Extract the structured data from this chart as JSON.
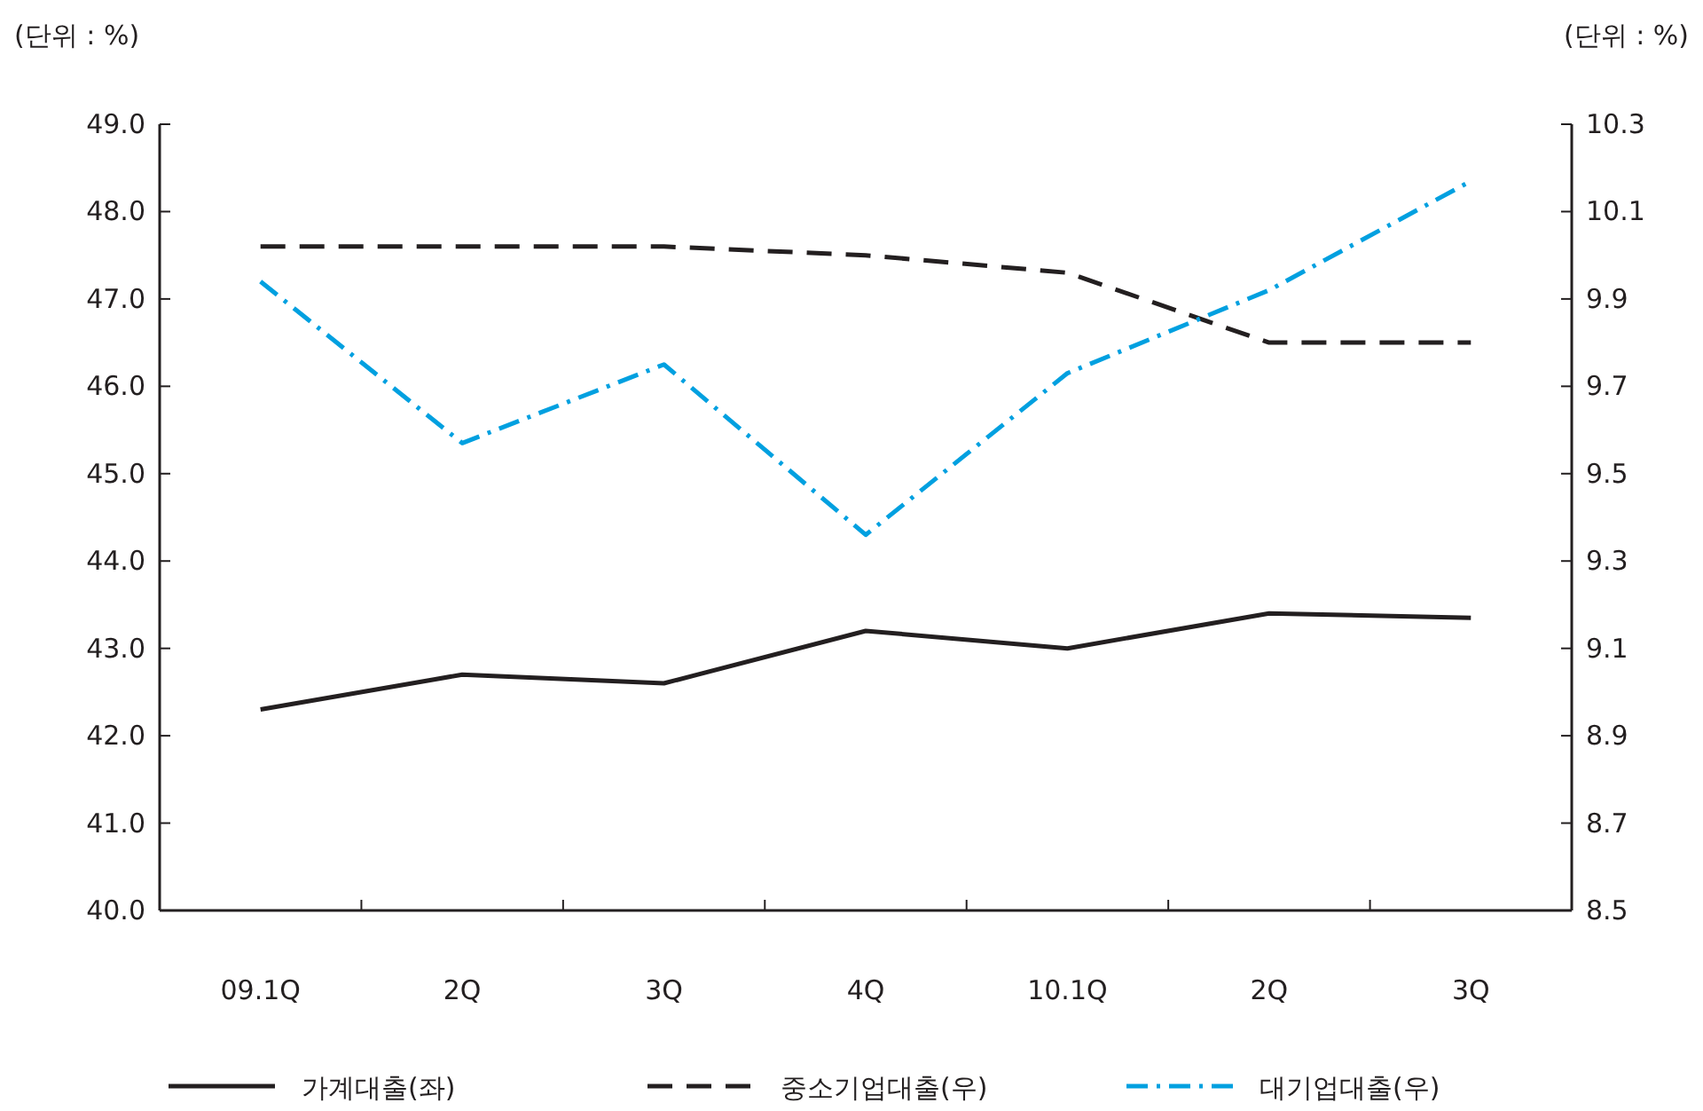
{
  "chart_data": {
    "type": "line",
    "categories": [
      "09.1Q",
      "2Q",
      "3Q",
      "4Q",
      "10.1Q",
      "2Q",
      "3Q"
    ],
    "ylabel": "(단위 : %)",
    "y2label": "(단위 : %)",
    "ylim": [
      40,
      49
    ],
    "yticks": [
      {
        "value": 40,
        "label": "40.0"
      },
      {
        "value": 41,
        "label": "41.0"
      },
      {
        "value": 42,
        "label": "42.0"
      },
      {
        "value": 43,
        "label": "43.0"
      },
      {
        "value": 44,
        "label": "44.0"
      },
      {
        "value": 45,
        "label": "45.0"
      },
      {
        "value": 46,
        "label": "46.0"
      },
      {
        "value": 47,
        "label": "47.0"
      },
      {
        "value": 48,
        "label": "48.0"
      },
      {
        "value": 49,
        "label": "49.0"
      }
    ],
    "y2lim": [
      8.5,
      10.3
    ],
    "y2ticks": [
      8.5,
      8.7,
      8.9,
      9.1,
      9.3,
      9.5,
      9.7,
      9.9,
      10.1,
      10.3
    ],
    "grid": false,
    "legend": "bottom",
    "marker": "none",
    "series": [
      {
        "name": "가계대출(좌)",
        "color": "#231f20",
        "line_style": "solid",
        "values": [
          42.3,
          42.7,
          42.6,
          43.2,
          43.0,
          43.4,
          43.35
        ]
      },
      {
        "name": "중소기업대출(우)",
        "color": "#231f20",
        "line_style": "dashed",
        "axis": "y2",
        "values": [
          10.02,
          10.02,
          10.02,
          10.0,
          9.96,
          9.8,
          9.8
        ]
      },
      {
        "name": "대기업대출(우)",
        "color": "#00a0e0",
        "line_style": "dashdot",
        "axis": "y2",
        "values": [
          9.94,
          9.57,
          9.75,
          9.36,
          9.73,
          9.92,
          10.17
        ]
      }
    ]
  }
}
